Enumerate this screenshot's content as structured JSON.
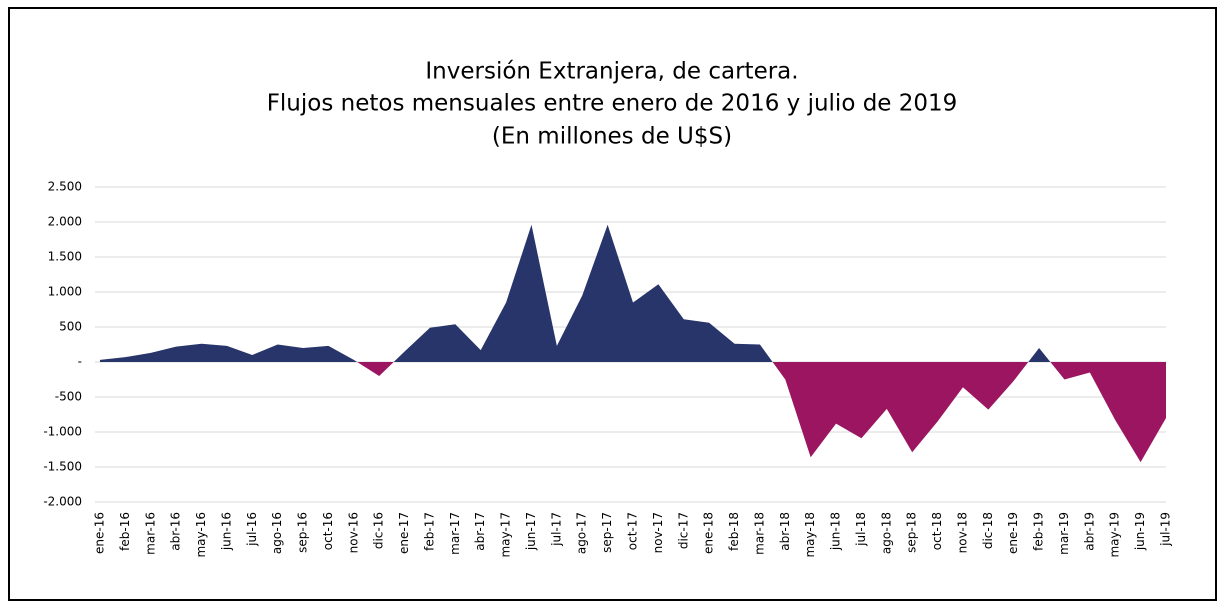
{
  "chart_data": {
    "type": "area",
    "title": [
      "Inversión Extranjera, de cartera.",
      "Flujos netos mensuales entre enero de 2016 y julio de 2019",
      "(En millones de U$S)"
    ],
    "categories": [
      "ene-16",
      "feb-16",
      "mar-16",
      "abr-16",
      "may-16",
      "jun-16",
      "jul-16",
      "ago-16",
      "sep-16",
      "oct-16",
      "nov-16",
      "dic-16",
      "ene-17",
      "feb-17",
      "mar-17",
      "abr-17",
      "may-17",
      "jun-17",
      "jul-17",
      "ago-17",
      "sep-17",
      "oct-17",
      "nov-17",
      "dic-17",
      "ene-18",
      "feb-18",
      "mar-18",
      "abr-18",
      "may-18",
      "jun-18",
      "jul-18",
      "ago-18",
      "sep-18",
      "oct-18",
      "nov-18",
      "dic-18",
      "ene-19",
      "feb-19",
      "mar-19",
      "abr-19",
      "may-19",
      "jun-19",
      "jul-19"
    ],
    "values": [
      30,
      70,
      130,
      220,
      260,
      230,
      100,
      250,
      200,
      230,
      30,
      -200,
      150,
      490,
      540,
      170,
      850,
      1960,
      230,
      950,
      1960,
      850,
      1110,
      610,
      560,
      260,
      250,
      -250,
      -1360,
      -880,
      -1090,
      -670,
      -1290,
      -850,
      -360,
      -680,
      -270,
      200,
      -250,
      -150,
      -830,
      -1430,
      -800
    ],
    "positive_color": "#27356b",
    "negative_color": "#9b1560",
    "ylim": [
      -2000,
      2500
    ],
    "yticks": [
      {
        "value": -2000,
        "label": "-2.000"
      },
      {
        "value": -1500,
        "label": "-1.500"
      },
      {
        "value": -1000,
        "label": "-1.000"
      },
      -500,
      {
        "value": 0,
        "label": "-"
      },
      500,
      {
        "value": 1000,
        "label": "1.000"
      },
      {
        "value": 1500,
        "label": "1.500"
      },
      {
        "value": 2000,
        "label": "2.000"
      },
      {
        "value": 2500,
        "label": "2.500"
      }
    ],
    "grid": true
  }
}
